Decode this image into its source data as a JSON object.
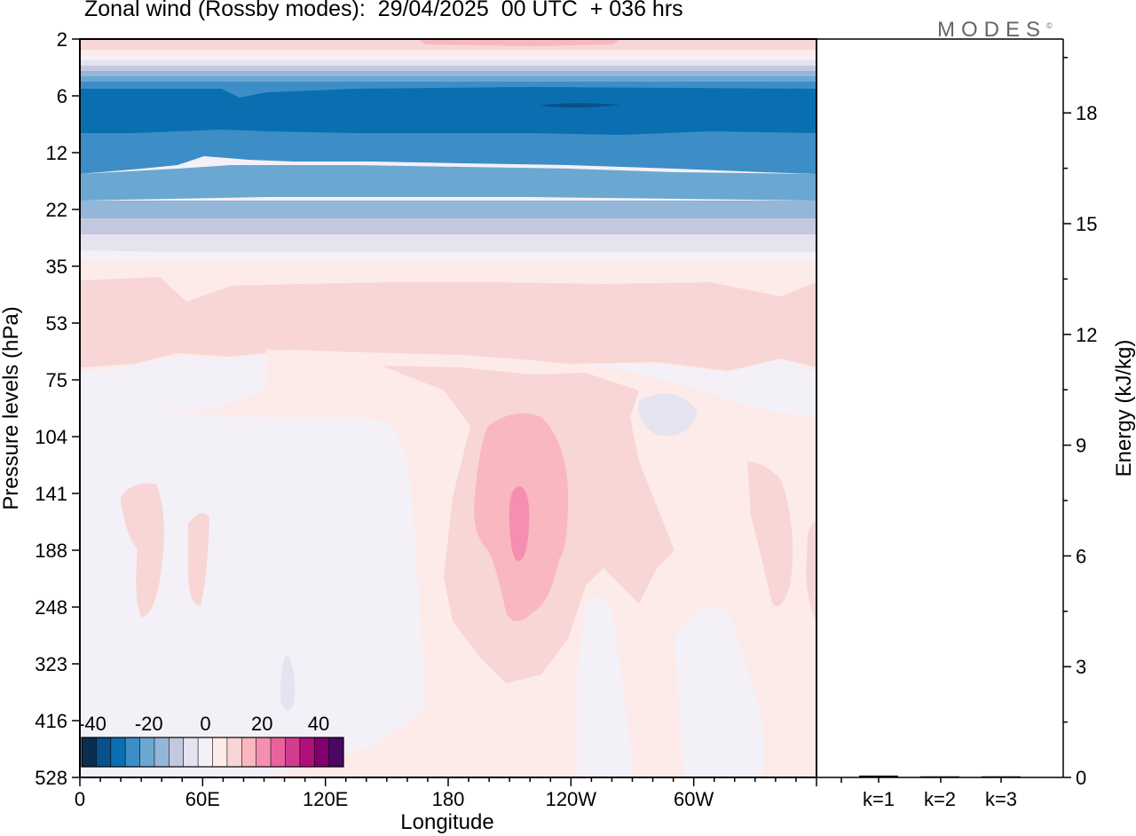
{
  "title": "Zonal wind (Rossby modes):  29/04/2025  00 UTC  + 036 hrs",
  "logo": "MODES",
  "logo_mark": "©",
  "chart_data": [
    {
      "type": "heatmap",
      "title": "Zonal wind (Rossby modes):  29/04/2025  00 UTC  + 036 hrs",
      "xlabel": "Longitude",
      "ylabel": "Pressure levels (hPa)",
      "x_ticks": [
        "0",
        "60E",
        "120E",
        "180",
        "120W",
        "60W"
      ],
      "y_ticks": [
        "2",
        "6",
        "12",
        "22",
        "35",
        "53",
        "75",
        "104",
        "141",
        "188",
        "248",
        "323",
        "416",
        "528"
      ],
      "y_scale": "log (model levels)",
      "colorbar": {
        "tick_labels": [
          "-40",
          "-20",
          "0",
          "20",
          "40"
        ],
        "colors": [
          "#0b2d4f",
          "#08518b",
          "#0a6fb0",
          "#3d8ec6",
          "#6aa8d2",
          "#94b6d8",
          "#c3c8e0",
          "#e4e3ef",
          "#f4f0f7",
          "#fdebea",
          "#f8d6d6",
          "#f9b7c0",
          "#f48fb1",
          "#e8639e",
          "#d23c8f",
          "#b0107a",
          "#80006c",
          "#4b0764"
        ]
      },
      "fields": [
        {
          "region": "upper stratosphere near 2 hPa",
          "sign": "positive",
          "approx_value": 10
        },
        {
          "region": "6-12 hPa band",
          "sign": "negative",
          "approx_value": -32
        },
        {
          "region": "around 22 hPa",
          "sign": "negative",
          "approx_value": -15
        },
        {
          "region": "35-75 hPa band",
          "sign": "positive",
          "approx_value": 5
        },
        {
          "region": "141 hPa near 160W",
          "sign": "positive",
          "approx_value": 15
        },
        {
          "region": "lower troposphere",
          "sign": "near zero",
          "approx_value": 0
        }
      ]
    },
    {
      "type": "bar",
      "ylabel": "Energy (kJ/kg)",
      "categories": [
        "k=1",
        "k=2",
        "k=3"
      ],
      "values": [
        0.05,
        0.03,
        0.03
      ],
      "y_ticks": [
        "0",
        "3",
        "6",
        "9",
        "12",
        "15",
        "18"
      ],
      "ylim": [
        0,
        20
      ]
    }
  ]
}
